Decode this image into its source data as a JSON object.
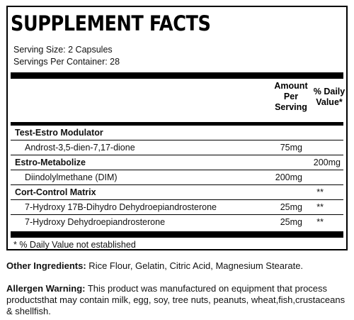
{
  "title": "SUPPLEMENT FACTS",
  "serving_size": "Serving Size: 2 Capsules",
  "servings_per_container": "Servings Per Container: 28",
  "headers": {
    "amount": [
      "Amount",
      "Per",
      "Serving"
    ],
    "daily_value": [
      "% Daily",
      "Value*"
    ]
  },
  "rows": [
    {
      "name": "Test-Estro Modulator",
      "type": "group",
      "amount": "",
      "dv": ""
    },
    {
      "name": "Androst-3,5-dien-7,17-dione",
      "type": "sub",
      "amount": "75mg",
      "dv": ""
    },
    {
      "name": "Estro-Metabolize",
      "type": "group",
      "amount": "",
      "dv": "200mg"
    },
    {
      "name": "Diindolylmethane (DIM)",
      "type": "sub",
      "amount": "200mg",
      "dv": ""
    },
    {
      "name": "Cort-Control Matrix",
      "type": "group",
      "amount": "",
      "dv": "**"
    },
    {
      "name": "7-Hydroxy 17B-Dihydro Dehydroepiandrosterone",
      "type": "sub",
      "amount": "25mg",
      "dv": "**"
    },
    {
      "name": "7-Hydroxy Dehydroepiandrosterone",
      "type": "sub",
      "amount": "25mg",
      "dv": "**"
    }
  ],
  "footnote": "* % Daily Value not established",
  "other_ingredients": {
    "label": "Other Ingredients:",
    "text": " Rice Flour, Gelatin, Citric Acid, Magnesium Stearate."
  },
  "allergen_warning": {
    "label": "Allergen Warning:",
    "text": " This product was manufactured on equipment that process productsthat may contain milk, egg, soy, tree nuts, peanuts, wheat,fish,crustaceans & shellfish."
  }
}
